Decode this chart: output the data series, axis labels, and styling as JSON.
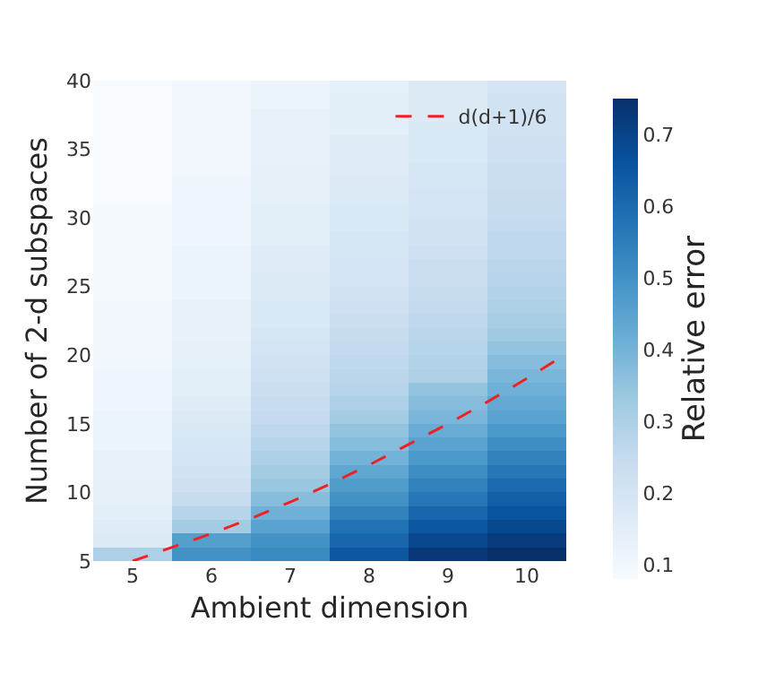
{
  "chart_data": {
    "type": "heatmap",
    "xlabel": "Ambient dimension",
    "ylabel": "Number of 2-d subspaces",
    "clabel": "Relative error",
    "x": [
      5,
      6,
      7,
      8,
      9,
      10
    ],
    "cells": [
      [
        0.08,
        0.1,
        0.12,
        0.14,
        0.17,
        0.2
      ],
      [
        0.08,
        0.1,
        0.12,
        0.15,
        0.17,
        0.21
      ],
      [
        0.08,
        0.1,
        0.13,
        0.15,
        0.17,
        0.21
      ],
      [
        0.08,
        0.1,
        0.13,
        0.15,
        0.18,
        0.21
      ],
      [
        0.08,
        0.1,
        0.13,
        0.16,
        0.18,
        0.22
      ],
      [
        0.08,
        0.1,
        0.13,
        0.16,
        0.18,
        0.22
      ],
      [
        0.08,
        0.1,
        0.14,
        0.16,
        0.19,
        0.23
      ],
      [
        0.08,
        0.11,
        0.14,
        0.17,
        0.19,
        0.23
      ],
      [
        0.08,
        0.11,
        0.14,
        0.17,
        0.2,
        0.24
      ],
      [
        0.09,
        0.11,
        0.15,
        0.18,
        0.2,
        0.24
      ],
      [
        0.09,
        0.11,
        0.15,
        0.18,
        0.21,
        0.25
      ],
      [
        0.09,
        0.11,
        0.15,
        0.19,
        0.21,
        0.26
      ],
      [
        0.09,
        0.12,
        0.16,
        0.19,
        0.22,
        0.26
      ],
      [
        0.09,
        0.12,
        0.16,
        0.2,
        0.23,
        0.27
      ],
      [
        0.09,
        0.12,
        0.17,
        0.2,
        0.23,
        0.28
      ],
      [
        0.09,
        0.12,
        0.17,
        0.21,
        0.24,
        0.29
      ],
      [
        0.1,
        0.13,
        0.18,
        0.22,
        0.25,
        0.3
      ],
      [
        0.1,
        0.13,
        0.18,
        0.23,
        0.26,
        0.31
      ],
      [
        0.1,
        0.13,
        0.19,
        0.24,
        0.27,
        0.33
      ],
      [
        0.1,
        0.14,
        0.2,
        0.25,
        0.28,
        0.35
      ],
      [
        0.1,
        0.14,
        0.21,
        0.26,
        0.29,
        0.37
      ],
      [
        0.11,
        0.15,
        0.22,
        0.27,
        0.3,
        0.39
      ],
      [
        0.11,
        0.15,
        0.23,
        0.28,
        0.35,
        0.41
      ],
      [
        0.11,
        0.16,
        0.24,
        0.3,
        0.37,
        0.43
      ],
      [
        0.12,
        0.17,
        0.25,
        0.32,
        0.39,
        0.45
      ],
      [
        0.12,
        0.18,
        0.26,
        0.35,
        0.42,
        0.48
      ],
      [
        0.12,
        0.19,
        0.28,
        0.37,
        0.45,
        0.51
      ],
      [
        0.13,
        0.2,
        0.3,
        0.4,
        0.48,
        0.54
      ],
      [
        0.13,
        0.21,
        0.32,
        0.44,
        0.51,
        0.57
      ],
      [
        0.14,
        0.22,
        0.34,
        0.47,
        0.54,
        0.6
      ],
      [
        0.14,
        0.24,
        0.37,
        0.5,
        0.57,
        0.63
      ],
      [
        0.15,
        0.28,
        0.41,
        0.54,
        0.61,
        0.66
      ],
      [
        0.16,
        0.32,
        0.45,
        0.58,
        0.65,
        0.69
      ],
      [
        0.17,
        0.46,
        0.5,
        0.61,
        0.69,
        0.72
      ],
      [
        0.3,
        0.5,
        0.52,
        0.65,
        0.73,
        0.75
      ]
    ],
    "clim": [
      0.08,
      0.75
    ],
    "cticks": [
      0.1,
      0.2,
      0.3,
      0.4,
      0.5,
      0.6,
      0.7
    ],
    "xlim": [
      4.5,
      10.5
    ],
    "xticks": [
      5,
      6,
      7,
      8,
      9,
      10
    ],
    "ylim": [
      5,
      40
    ],
    "yticks": [
      5,
      10,
      15,
      20,
      25,
      30,
      35,
      40
    ],
    "series": [
      {
        "type": "line",
        "name": "d(d+1)/6",
        "color": "#ee2222",
        "line_style": "dashed",
        "x": [
          5,
          5.5,
          6,
          6.5,
          7,
          7.5,
          8,
          8.5,
          9,
          9.5,
          10,
          10.5
        ],
        "values": [
          5,
          6,
          7,
          8.1,
          9.3,
          10.6,
          12,
          13.5,
          15,
          16.6,
          18.3,
          20.1
        ]
      }
    ],
    "legend": "top right"
  }
}
